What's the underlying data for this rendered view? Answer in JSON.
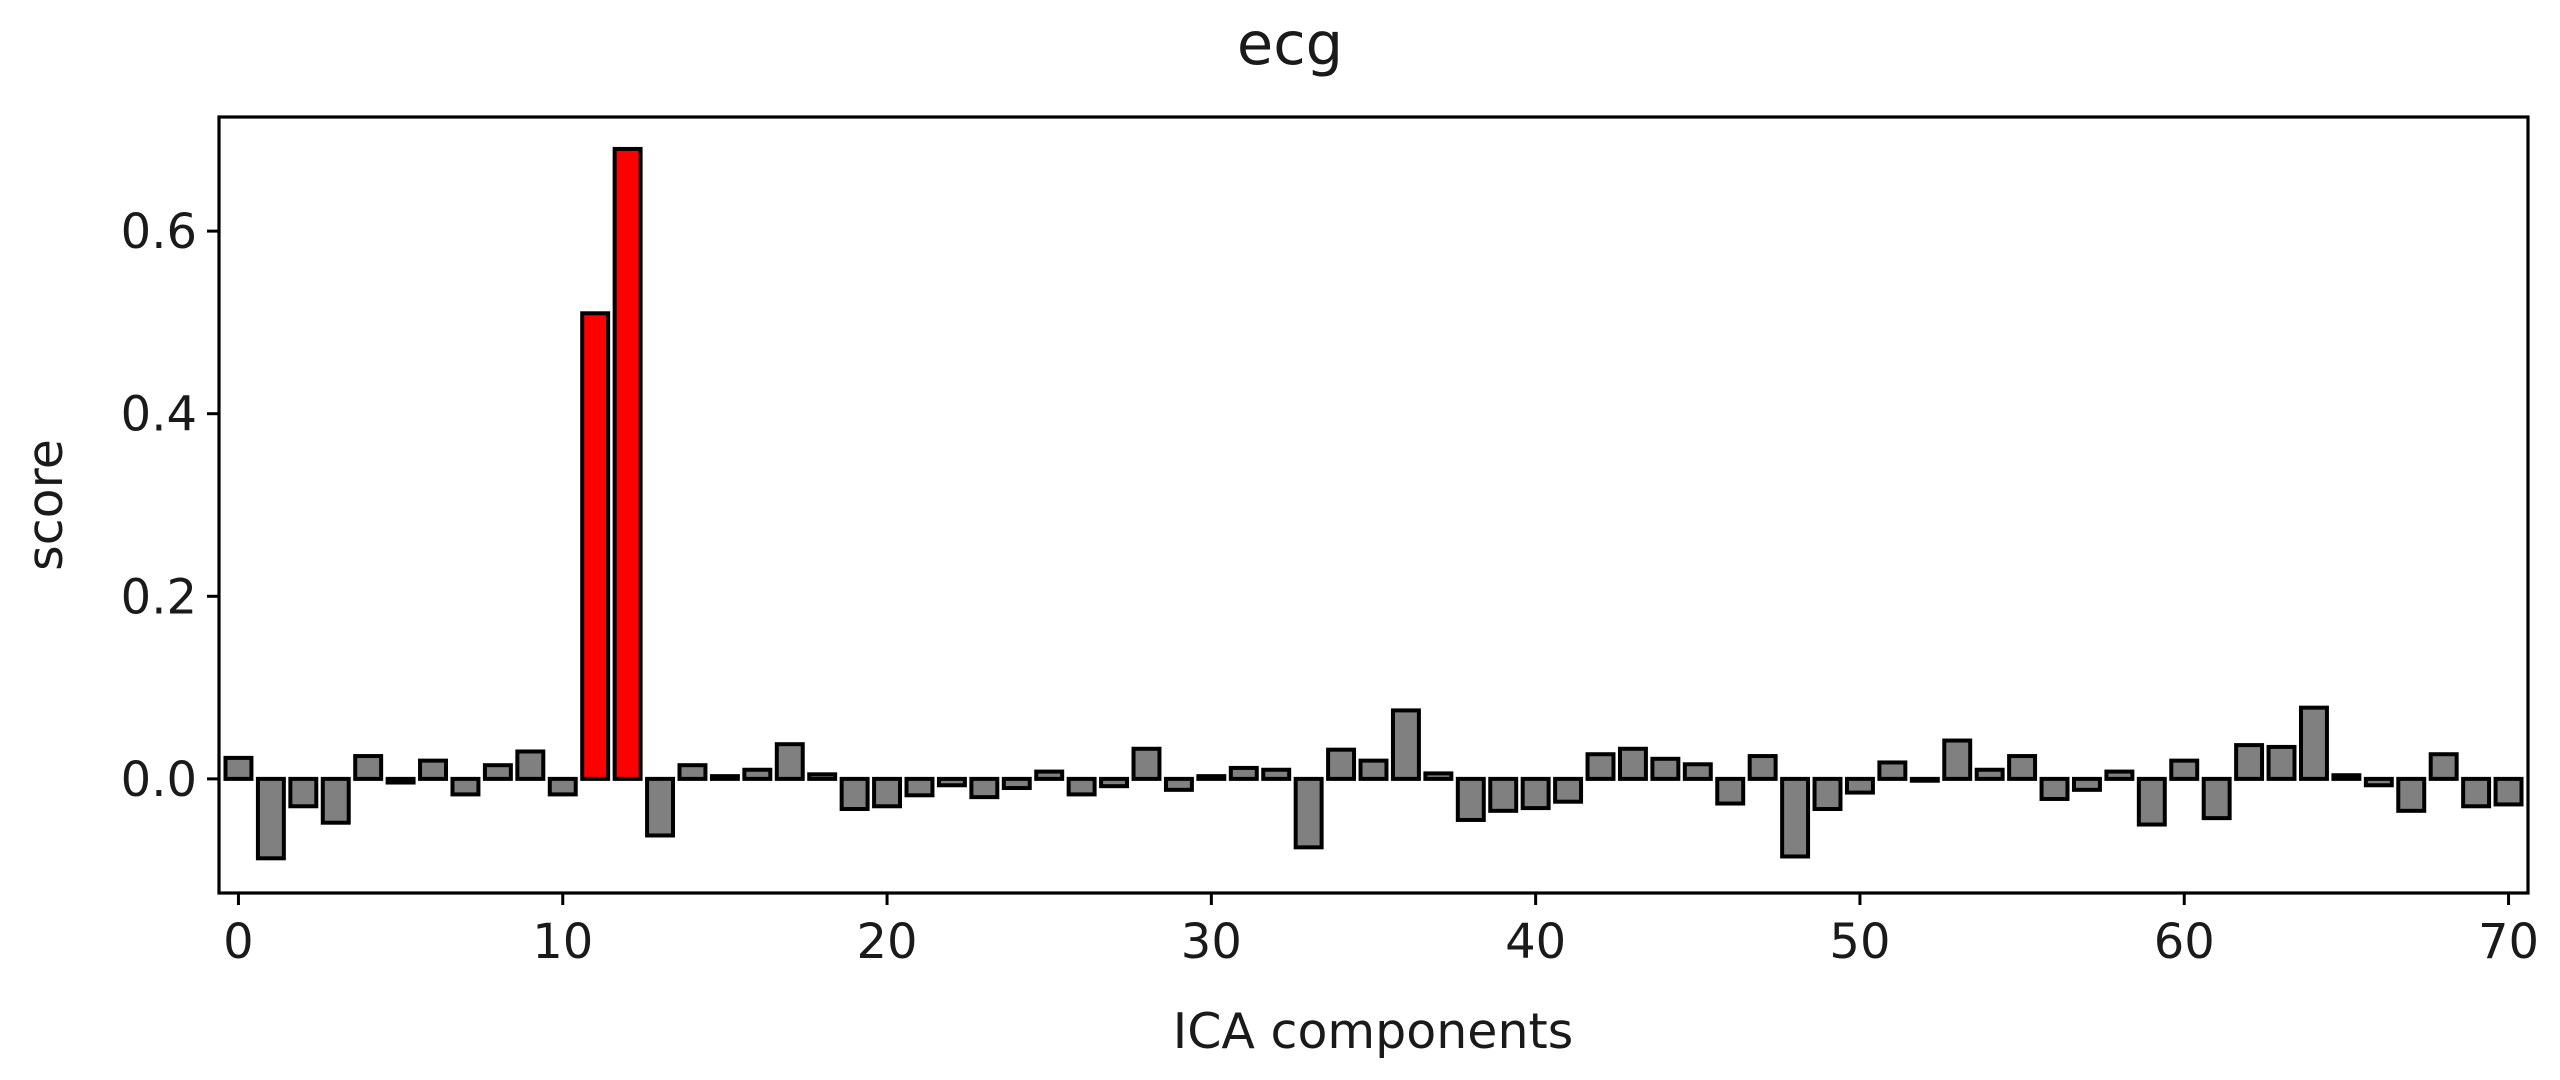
{
  "chart_data": {
    "type": "bar",
    "title": "ecg",
    "xlabel": "ICA components",
    "ylabel": "score",
    "xlim": [
      -0.6,
      70.6
    ],
    "ylim": [
      -0.125,
      0.725
    ],
    "xticks": [
      0,
      10,
      20,
      30,
      40,
      50,
      60,
      70
    ],
    "yticks": [
      0.0,
      0.2,
      0.4,
      0.6
    ],
    "ytick_labels": [
      "0.0",
      "0.2",
      "0.4",
      "0.6"
    ],
    "grid": false,
    "bar_color": "#808080",
    "highlight_color": "#ff0000",
    "edge_color": "#000000",
    "highlighted_indices": [
      11,
      12
    ],
    "x": [
      0,
      1,
      2,
      3,
      4,
      5,
      6,
      7,
      8,
      9,
      10,
      11,
      12,
      13,
      14,
      15,
      16,
      17,
      18,
      19,
      20,
      21,
      22,
      23,
      24,
      25,
      26,
      27,
      28,
      29,
      30,
      31,
      32,
      33,
      34,
      35,
      36,
      37,
      38,
      39,
      40,
      41,
      42,
      43,
      44,
      45,
      46,
      47,
      48,
      49,
      50,
      51,
      52,
      53,
      54,
      55,
      56,
      57,
      58,
      59,
      60,
      61,
      62,
      63,
      64,
      65,
      66,
      67,
      68,
      69,
      70
    ],
    "values": [
      0.023,
      -0.087,
      -0.03,
      -0.048,
      0.025,
      -0.004,
      0.02,
      -0.017,
      0.015,
      0.03,
      -0.017,
      0.51,
      0.69,
      -0.062,
      0.015,
      0.003,
      0.01,
      0.038,
      0.005,
      -0.033,
      -0.03,
      -0.018,
      -0.007,
      -0.02,
      -0.01,
      0.008,
      -0.017,
      -0.008,
      0.033,
      -0.012,
      0.003,
      0.012,
      0.01,
      -0.075,
      0.032,
      0.02,
      0.075,
      0.006,
      -0.045,
      -0.035,
      -0.032,
      -0.025,
      0.027,
      0.033,
      0.022,
      0.016,
      -0.027,
      0.025,
      -0.085,
      -0.033,
      -0.015,
      0.018,
      -0.002,
      0.042,
      0.01,
      0.025,
      -0.022,
      -0.012,
      0.008,
      -0.05,
      0.02,
      -0.043,
      0.037,
      0.035,
      0.078,
      0.004,
      -0.007,
      -0.035,
      0.027,
      -0.03,
      -0.028
    ]
  }
}
